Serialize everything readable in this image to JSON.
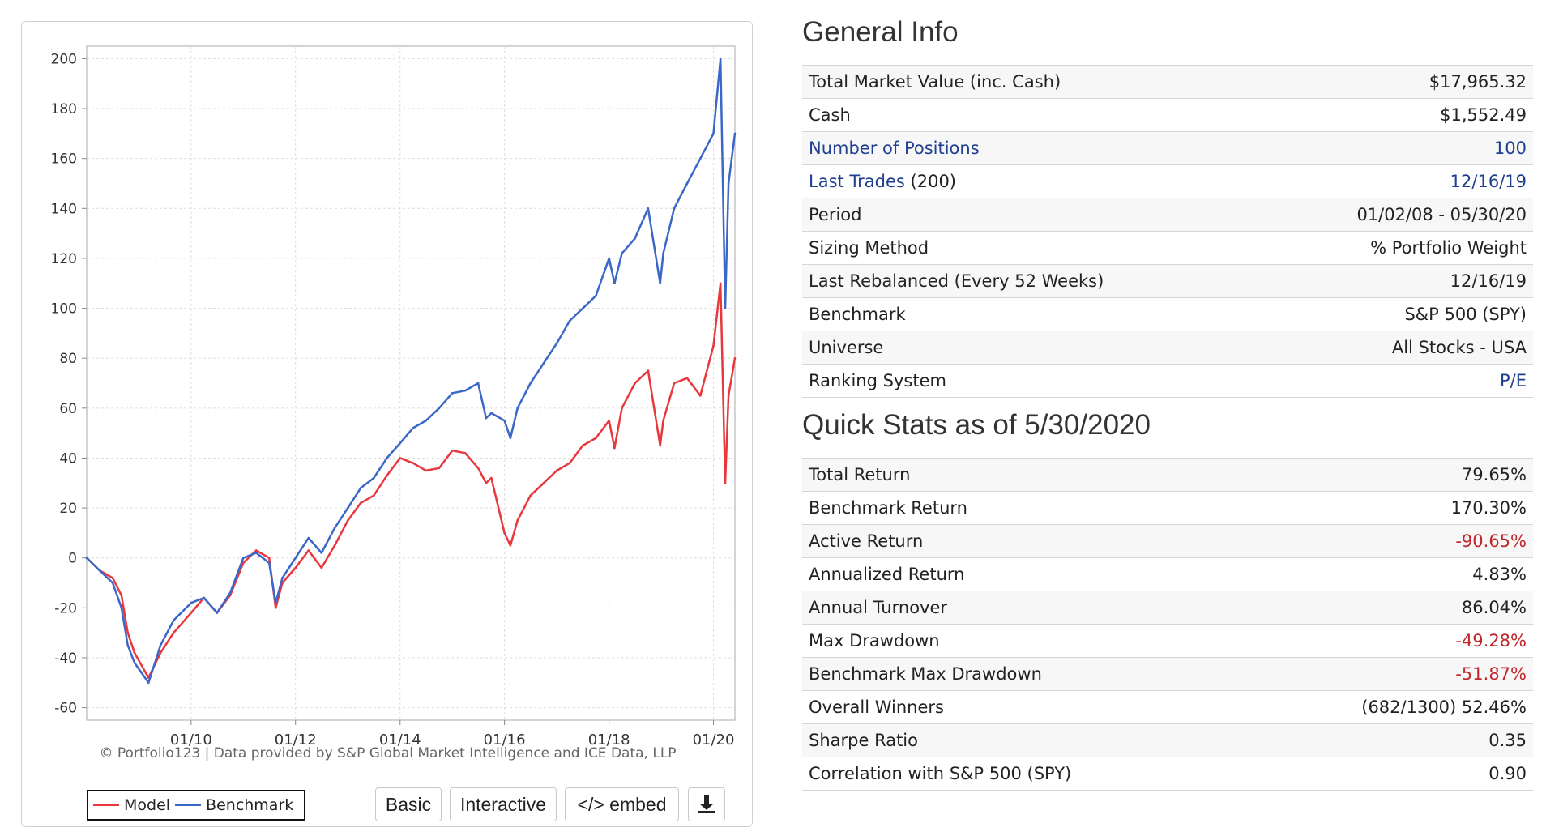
{
  "chart_data": {
    "type": "line",
    "ylim": [
      -65,
      205
    ],
    "xlim": [
      "2008-01-02",
      "2020-05-30"
    ],
    "yticks": [
      200,
      180,
      160,
      140,
      120,
      100,
      80,
      60,
      40,
      20,
      0,
      -20,
      -40,
      -60
    ],
    "xticks": [
      "01/10",
      "01/12",
      "01/14",
      "01/16",
      "01/18",
      "01/20"
    ],
    "x": [
      "2008-01-02",
      "2008-04-01",
      "2008-07-01",
      "2008-09-01",
      "2008-10-15",
      "2008-12-01",
      "2009-03-09",
      "2009-06-01",
      "2009-09-01",
      "2010-01-01",
      "2010-04-01",
      "2010-07-01",
      "2010-10-01",
      "2011-01-01",
      "2011-04-01",
      "2011-07-01",
      "2011-08-15",
      "2011-10-01",
      "2012-01-01",
      "2012-04-01",
      "2012-07-01",
      "2012-10-01",
      "2013-01-01",
      "2013-04-01",
      "2013-07-01",
      "2013-10-01",
      "2014-01-01",
      "2014-04-01",
      "2014-07-01",
      "2014-10-01",
      "2015-01-01",
      "2015-04-01",
      "2015-07-01",
      "2015-08-25",
      "2015-10-01",
      "2016-01-01",
      "2016-02-11",
      "2016-04-01",
      "2016-07-01",
      "2016-10-01",
      "2017-01-01",
      "2017-04-01",
      "2017-07-01",
      "2017-10-01",
      "2018-01-01",
      "2018-02-08",
      "2018-04-01",
      "2018-07-01",
      "2018-10-01",
      "2018-12-24",
      "2019-01-15",
      "2019-04-01",
      "2019-07-01",
      "2019-10-01",
      "2020-01-01",
      "2020-02-19",
      "2020-03-23",
      "2020-04-15",
      "2020-05-30"
    ],
    "series": [
      {
        "name": "Model",
        "color": "#e8383d",
        "values": [
          0,
          -5,
          -8,
          -15,
          -30,
          -38,
          -48,
          -38,
          -30,
          -22,
          -16,
          -22,
          -15,
          -2,
          3,
          0,
          -20,
          -10,
          -4,
          3,
          -4,
          5,
          15,
          22,
          25,
          33,
          40,
          38,
          35,
          36,
          43,
          42,
          36,
          30,
          32,
          10,
          5,
          15,
          25,
          30,
          35,
          38,
          45,
          48,
          55,
          44,
          60,
          70,
          75,
          45,
          55,
          70,
          72,
          65,
          85,
          110,
          30,
          65,
          80
        ]
      },
      {
        "name": "Benchmark",
        "color": "#3b67c9",
        "values": [
          0,
          -5,
          -10,
          -20,
          -35,
          -42,
          -50,
          -35,
          -25,
          -18,
          -16,
          -22,
          -14,
          0,
          2,
          -2,
          -18,
          -8,
          0,
          8,
          2,
          12,
          20,
          28,
          32,
          40,
          46,
          52,
          55,
          60,
          66,
          67,
          70,
          56,
          58,
          55,
          48,
          60,
          70,
          78,
          86,
          95,
          100,
          105,
          120,
          110,
          122,
          128,
          140,
          110,
          122,
          140,
          150,
          160,
          170,
          200,
          100,
          150,
          170
        ]
      }
    ]
  },
  "chart_credit": "© Portfolio123 | Data provided by S&P Global Market Intelligence and ICE Data, LLP",
  "legend": {
    "model": "Model",
    "benchmark": "Benchmark"
  },
  "buttons": {
    "basic": "Basic",
    "interactive": "Interactive",
    "embed": "</> embed",
    "download_icon": "download-icon"
  },
  "general_info": {
    "title": "General Info",
    "rows": [
      {
        "label": "Total Market Value (inc. Cash)",
        "value": "$17,965.32"
      },
      {
        "label": "Cash",
        "value": "$1,552.49"
      },
      {
        "label": "Number of Positions",
        "value": "100"
      },
      {
        "label": "Last Trades",
        "label_suffix": " (200)",
        "value": "12/16/19"
      },
      {
        "label": "Period",
        "value": "01/02/08 - 05/30/20"
      },
      {
        "label": "Sizing Method",
        "value": "% Portfolio Weight"
      },
      {
        "label": "Last Rebalanced (Every 52 Weeks)",
        "value": "12/16/19"
      },
      {
        "label": "Benchmark",
        "value": "S&P 500 (SPY)"
      },
      {
        "label": "Universe",
        "value": "All Stocks - USA"
      },
      {
        "label": "Ranking System",
        "value": "P/E"
      }
    ]
  },
  "quick_stats": {
    "title": "Quick Stats as of 5/30/2020",
    "rows": [
      {
        "label": "Total Return",
        "value": "79.65%"
      },
      {
        "label": "Benchmark Return",
        "value": "170.30%"
      },
      {
        "label": "Active Return",
        "value": "-90.65%"
      },
      {
        "label": "Annualized Return",
        "value": "4.83%"
      },
      {
        "label": "Annual Turnover",
        "value": "86.04%"
      },
      {
        "label": "Max Drawdown",
        "value": "-49.28%"
      },
      {
        "label": "Benchmark Max Drawdown",
        "value": "-51.87%"
      },
      {
        "label": "Overall Winners",
        "value": "(682/1300) 52.46%"
      },
      {
        "label": "Sharpe Ratio",
        "value": "0.35"
      },
      {
        "label": "Correlation with S&P 500 (SPY)",
        "value": "0.90"
      }
    ]
  },
  "colors": {
    "link": "#1f3f8f",
    "negative": "#c0262c",
    "model": "#e8383d",
    "benchmark": "#3b67c9"
  }
}
